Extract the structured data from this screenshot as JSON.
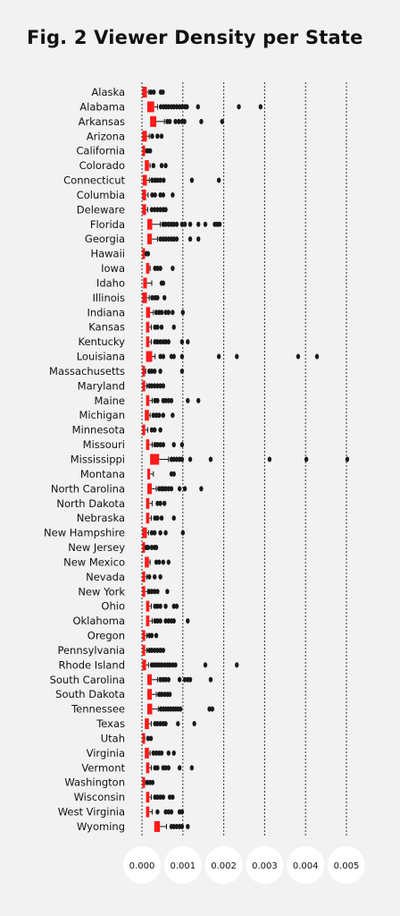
{
  "header": {
    "title": "Fig. 2 Viewer Density per State"
  },
  "colors": {
    "box": "#ff1a1a",
    "outlier": "#1a1a1a",
    "grid": "#333333",
    "background": "#f2f2f2",
    "tick_circle": "#ffffff"
  },
  "chart_data": {
    "type": "boxplot",
    "orientation": "horizontal",
    "title": "Fig. 2 Viewer Density per State",
    "xlabel": "",
    "ylabel": "",
    "xlim": [
      0,
      0.005
    ],
    "xticks": [
      "0.000",
      "0.001",
      "0.002",
      "0.003",
      "0.004",
      "0.005"
    ],
    "grid": "vertical dashed",
    "categories": [
      {
        "name": "Alaska",
        "q1": 1e-05,
        "q3": 0.00012,
        "whisker": 0.00017,
        "outliers": [
          0.00022,
          0.00029,
          0.00046,
          0.00051
        ]
      },
      {
        "name": "Alabama",
        "q1": 0.00013,
        "q3": 0.0003,
        "whisker": 0.00038,
        "outliers": [
          0.00046,
          0.00053,
          0.00059,
          0.00065,
          0.00072,
          0.00078,
          0.00085,
          0.00092,
          0.00098,
          0.00105,
          0.0011,
          0.00137,
          0.00237,
          0.0029
        ]
      },
      {
        "name": "Arkansas",
        "q1": 0.0002,
        "q3": 0.00035,
        "whisker": 0.00055,
        "outliers": [
          0.00062,
          0.00068,
          0.00082,
          0.0009,
          0.00098,
          0.00104,
          0.00145,
          0.00196
        ]
      },
      {
        "name": "Arizona",
        "q1": 1e-05,
        "q3": 0.00012,
        "whisker": 0.00018,
        "outliers": [
          0.00025,
          0.00038,
          0.00048
        ]
      },
      {
        "name": "California",
        "q1": 1e-05,
        "q3": 6e-05,
        "whisker": 9e-05,
        "outliers": [
          0.00014,
          0.0002
        ]
      },
      {
        "name": "Colorado",
        "q1": 7e-05,
        "q3": 0.00017,
        "whisker": 0.0002,
        "outliers": [
          0.00028,
          0.00048,
          0.00058
        ]
      },
      {
        "name": "Connecticut",
        "q1": 2e-05,
        "q3": 0.00012,
        "whisker": 0.00018,
        "outliers": [
          0.00025,
          0.00032,
          0.00038,
          0.00045,
          0.00053,
          0.00122,
          0.00188
        ]
      },
      {
        "name": "Columbia",
        "q1": 1e-05,
        "q3": 0.0001,
        "whisker": 0.00015,
        "outliers": [
          0.00025,
          0.00032,
          0.00045,
          0.00052,
          0.00075
        ]
      },
      {
        "name": "Deleware",
        "q1": 1e-05,
        "q3": 0.0001,
        "whisker": 0.00014,
        "outliers": [
          0.00024,
          0.00031,
          0.00038,
          0.00045,
          0.00052,
          0.00058
        ]
      },
      {
        "name": "Florida",
        "q1": 0.00013,
        "q3": 0.00025,
        "whisker": 0.00045,
        "outliers": [
          0.00052,
          0.00058,
          0.00065,
          0.00072,
          0.00078,
          0.00085,
          0.00098,
          0.00105,
          0.00118,
          0.00138,
          0.00155,
          0.00178,
          0.00184,
          0.0019
        ]
      },
      {
        "name": "Georgia",
        "q1": 0.00013,
        "q3": 0.00024,
        "whisker": 0.00038,
        "outliers": [
          0.00045,
          0.00052,
          0.00058,
          0.00065,
          0.00072,
          0.00078,
          0.00085,
          0.00118,
          0.00138
        ]
      },
      {
        "name": "Hawaii",
        "q1": 1e-05,
        "q3": 4e-05,
        "whisker": 7e-05,
        "outliers": [
          0.00011,
          0.00015
        ]
      },
      {
        "name": "Iowa",
        "q1": 0.0001,
        "q3": 0.00018,
        "whisker": 0.0002,
        "outliers": [
          0.00032,
          0.00038,
          0.00045,
          0.00075
        ]
      },
      {
        "name": "Idaho",
        "q1": 3e-05,
        "q3": 0.00012,
        "whisker": 0.00024,
        "outliers": [
          0.00048,
          0.00052
        ]
      },
      {
        "name": "Illinois",
        "q1": 1e-05,
        "q3": 0.00012,
        "whisker": 0.00018,
        "outliers": [
          0.00025,
          0.00032,
          0.00038,
          0.00055
        ]
      },
      {
        "name": "Indiana",
        "q1": 0.0001,
        "q3": 0.0002,
        "whisker": 0.00028,
        "outliers": [
          0.00035,
          0.00042,
          0.00048,
          0.00058,
          0.00065,
          0.00075,
          0.001
        ]
      },
      {
        "name": "Kansas",
        "q1": 0.0001,
        "q3": 0.00018,
        "whisker": 0.00023,
        "outliers": [
          0.00032,
          0.00038,
          0.00048,
          0.00078
        ]
      },
      {
        "name": "Kentucky",
        "q1": 0.0001,
        "q3": 0.00018,
        "whisker": 0.00023,
        "outliers": [
          0.00032,
          0.00038,
          0.00045,
          0.00052,
          0.00058,
          0.00065,
          0.00098,
          0.00112
        ]
      },
      {
        "name": "Louisiana",
        "q1": 0.0001,
        "q3": 0.00025,
        "whisker": 0.00032,
        "outliers": [
          0.00045,
          0.00052,
          0.00072,
          0.00078,
          0.00098,
          0.00188,
          0.00232,
          0.00382,
          0.00428
        ]
      },
      {
        "name": "Massachusetts",
        "q1": 1e-05,
        "q3": 5e-05,
        "whisker": 9e-05,
        "outliers": [
          0.00018,
          0.00024,
          0.00031,
          0.00045,
          0.00098
        ]
      },
      {
        "name": "Maryland",
        "q1": 1e-05,
        "q3": 8e-05,
        "whisker": 0.00012,
        "outliers": [
          0.00018,
          0.00024,
          0.00031,
          0.00038,
          0.00045,
          0.00052
        ]
      },
      {
        "name": "Maine",
        "q1": 0.0001,
        "q3": 0.00018,
        "whisker": 0.00025,
        "outliers": [
          0.00032,
          0.00038,
          0.00052,
          0.00058,
          0.00065,
          0.00072,
          0.00112,
          0.00138
        ]
      },
      {
        "name": "Michigan",
        "q1": 7e-05,
        "q3": 0.00017,
        "whisker": 0.0002,
        "outliers": [
          0.00028,
          0.00035,
          0.00042,
          0.00052,
          0.00075
        ]
      },
      {
        "name": "Minnesota",
        "q1": 1e-05,
        "q3": 8e-05,
        "whisker": 0.00014,
        "outliers": [
          0.00024,
          0.00031,
          0.00045
        ]
      },
      {
        "name": "Missouri",
        "q1": 0.0001,
        "q3": 0.00018,
        "whisker": 0.00025,
        "outliers": [
          0.00032,
          0.00038,
          0.00045,
          0.00052,
          0.00078,
          0.00098
        ]
      },
      {
        "name": "Mississippi",
        "q1": 0.0002,
        "q3": 0.00042,
        "whisker": 0.00065,
        "outliers": [
          0.00072,
          0.00078,
          0.00085,
          0.00092,
          0.00098,
          0.00118,
          0.00168,
          0.00312,
          0.00402,
          0.00502
        ]
      },
      {
        "name": "Montana",
        "q1": 0.00013,
        "q3": 0.0002,
        "whisker": 0.00028,
        "outliers": [
          0.00072,
          0.00078
        ]
      },
      {
        "name": "North Carolina",
        "q1": 0.00013,
        "q3": 0.00024,
        "whisker": 0.00035,
        "outliers": [
          0.00042,
          0.00048,
          0.00052,
          0.00058,
          0.00065,
          0.00072,
          0.00092,
          0.00105,
          0.00145
        ]
      },
      {
        "name": "North Dakota",
        "q1": 0.0001,
        "q3": 0.00018,
        "whisker": 0.00025,
        "outliers": [
          0.00038,
          0.00045,
          0.00055
        ]
      },
      {
        "name": "Nebraska",
        "q1": 0.0001,
        "q3": 0.00018,
        "whisker": 0.00023,
        "outliers": [
          0.00032,
          0.00038,
          0.00048,
          0.00078
        ]
      },
      {
        "name": "New Hampshire",
        "q1": 1e-05,
        "q3": 0.00012,
        "whisker": 0.00016,
        "outliers": [
          0.00024,
          0.00031,
          0.00045,
          0.00058,
          0.001
        ]
      },
      {
        "name": "New Jersey",
        "q1": 1e-05,
        "q3": 4e-05,
        "whisker": 7e-05,
        "outliers": [
          0.00011,
          0.00015,
          0.00024,
          0.00031,
          0.00035
        ]
      },
      {
        "name": "New Mexico",
        "q1": 7e-05,
        "q3": 0.00017,
        "whisker": 0.0002,
        "outliers": [
          0.00035,
          0.00042,
          0.00052,
          0.00065
        ]
      },
      {
        "name": "Nevada",
        "q1": 1e-05,
        "q3": 8e-05,
        "whisker": 0.00012,
        "outliers": [
          0.00018,
          0.00031,
          0.00045
        ]
      },
      {
        "name": "New York",
        "q1": 1e-05,
        "q3": 8e-05,
        "whisker": 0.00014,
        "outliers": [
          0.00018,
          0.00024,
          0.00031,
          0.00038,
          0.00062
        ]
      },
      {
        "name": "Ohio",
        "q1": 0.0001,
        "q3": 0.00018,
        "whisker": 0.00023,
        "outliers": [
          0.00032,
          0.00038,
          0.00045,
          0.00058,
          0.00078,
          0.00085
        ]
      },
      {
        "name": "Oklahoma",
        "q1": 0.0001,
        "q3": 0.00018,
        "whisker": 0.00025,
        "outliers": [
          0.00032,
          0.00038,
          0.00045,
          0.00058,
          0.00065,
          0.00072,
          0.00078,
          0.00112
        ]
      },
      {
        "name": "Oregon",
        "q1": 1e-05,
        "q3": 8e-05,
        "whisker": 0.00012,
        "outliers": [
          0.00018,
          0.00024,
          0.00035
        ]
      },
      {
        "name": "Pennsylvania",
        "q1": 1e-05,
        "q3": 8e-05,
        "whisker": 0.00012,
        "outliers": [
          0.00018,
          0.00024,
          0.00031,
          0.00038,
          0.00045,
          0.00052
        ]
      },
      {
        "name": "Rhode Island",
        "q1": 1e-05,
        "q3": 0.0001,
        "whisker": 0.00016,
        "outliers": [
          0.00024,
          0.0003,
          0.00036,
          0.00042,
          0.00048,
          0.00055,
          0.00062,
          0.00068,
          0.00075,
          0.00082,
          0.00155,
          0.00232
        ]
      },
      {
        "name": "South Carolina",
        "q1": 0.00013,
        "q3": 0.00024,
        "whisker": 0.00038,
        "outliers": [
          0.00045,
          0.00052,
          0.00058,
          0.00065,
          0.00092,
          0.00105,
          0.00112,
          0.00118,
          0.00168
        ]
      },
      {
        "name": "South Dakota",
        "q1": 0.00013,
        "q3": 0.00024,
        "whisker": 0.00035,
        "outliers": [
          0.00042,
          0.00048,
          0.00055,
          0.00062,
          0.00068
        ]
      },
      {
        "name": "Tennessee",
        "q1": 0.00013,
        "q3": 0.00025,
        "whisker": 0.0004,
        "outliers": [
          0.00046,
          0.00052,
          0.00058,
          0.00064,
          0.0007,
          0.00076,
          0.00082,
          0.00088,
          0.00094,
          0.00165,
          0.00172
        ]
      },
      {
        "name": "Texas",
        "q1": 7e-05,
        "q3": 0.00017,
        "whisker": 0.00023,
        "outliers": [
          0.00032,
          0.00038,
          0.00045,
          0.00052,
          0.00058,
          0.00088,
          0.00128
        ]
      },
      {
        "name": "Utah",
        "q1": 1e-05,
        "q3": 4e-05,
        "whisker": 7e-05,
        "outliers": [
          0.00015,
          0.00022
        ]
      },
      {
        "name": "Virginia",
        "q1": 7e-05,
        "q3": 0.00017,
        "whisker": 0.0002,
        "outliers": [
          0.00028,
          0.00035,
          0.00042,
          0.00048,
          0.00065,
          0.00078
        ]
      },
      {
        "name": "Vermont",
        "q1": 0.0001,
        "q3": 0.00018,
        "whisker": 0.00023,
        "outliers": [
          0.00032,
          0.00038,
          0.00052,
          0.00058,
          0.00065,
          0.00092,
          0.00122
        ]
      },
      {
        "name": "Washington",
        "q1": 1e-05,
        "q3": 6e-05,
        "whisker": 9e-05,
        "outliers": [
          0.00014,
          0.0002,
          0.00026
        ]
      },
      {
        "name": "Wisconsin",
        "q1": 0.0001,
        "q3": 0.00018,
        "whisker": 0.00023,
        "outliers": [
          0.00032,
          0.00038,
          0.00045,
          0.00052,
          0.00068,
          0.00075
        ]
      },
      {
        "name": "West Virginia",
        "q1": 0.0001,
        "q3": 0.00018,
        "whisker": 0.00025,
        "outliers": [
          0.00038,
          0.00058,
          0.00065,
          0.00072,
          0.00092,
          0.00098
        ]
      },
      {
        "name": "Wyoming",
        "q1": 0.0003,
        "q3": 0.00044,
        "whisker": 0.0006,
        "outliers": [
          0.00072,
          0.00078,
          0.00085,
          0.00092,
          0.00098,
          0.00112
        ]
      }
    ]
  }
}
